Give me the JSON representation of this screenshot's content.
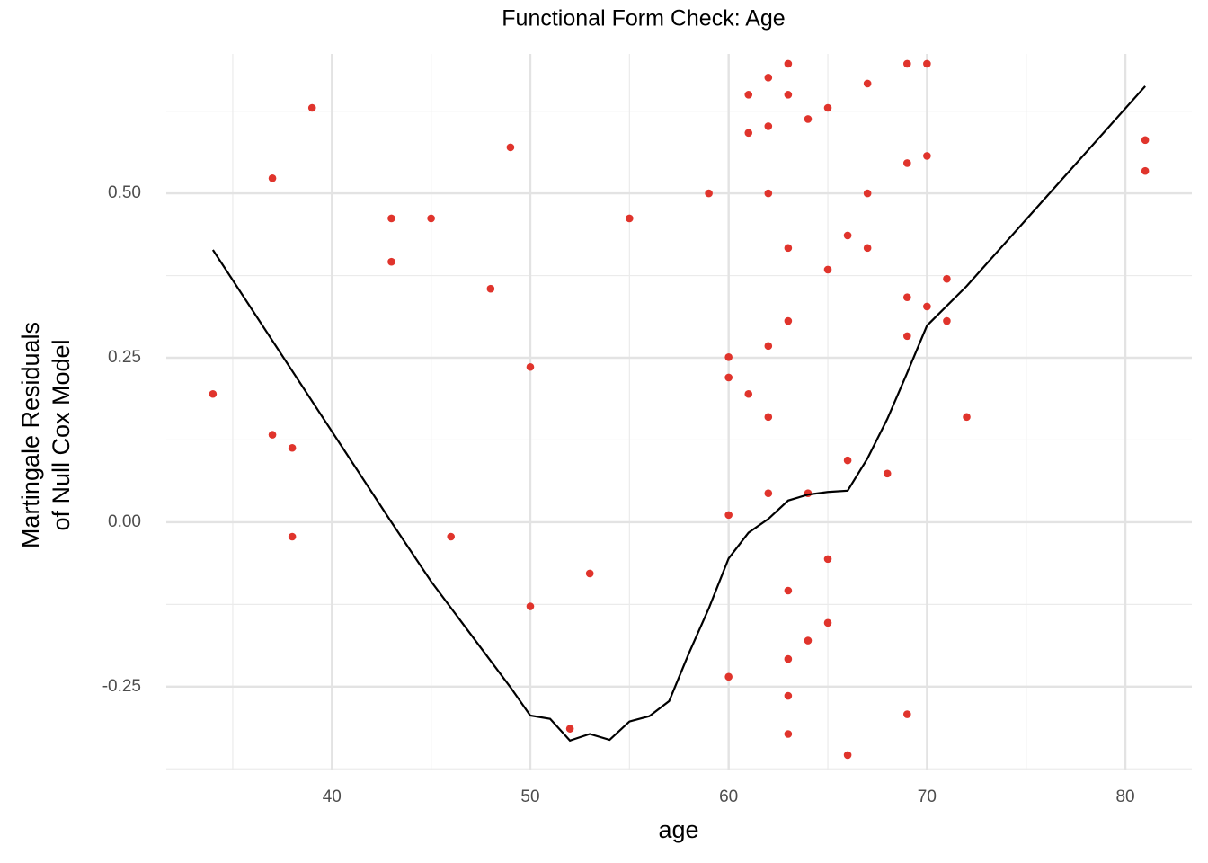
{
  "chart_data": {
    "type": "scatter",
    "title": "Functional Form Check: Age",
    "xlabel": "age",
    "ylabel": [
      "Martingale Residuals",
      "of Null Cox Model"
    ],
    "xlim": [
      31.65,
      83.35
    ],
    "ylim": [
      -0.376,
      0.712
    ],
    "xticks": [
      40,
      50,
      60,
      70,
      80
    ],
    "yticks": [
      {
        "value": -0.25,
        "label": "-0.25"
      },
      {
        "value": 0,
        "label": "0.00"
      },
      {
        "value": 0.25,
        "label": "0.25"
      },
      {
        "value": 0.5,
        "label": "0.50"
      }
    ],
    "xminor_ticks": [
      35,
      45,
      55,
      65,
      75
    ],
    "yminor_ticks": [
      -0.375,
      -0.125,
      0.125,
      0.375,
      0.625
    ],
    "grid": true,
    "point_color": "#e0342c",
    "x": [
      34,
      37,
      37,
      38,
      38,
      39,
      43,
      43,
      45,
      46,
      48,
      49,
      50,
      50,
      52,
      53,
      55,
      59,
      60,
      60,
      60,
      60,
      61,
      61,
      61,
      62,
      62,
      62,
      62,
      62,
      62,
      63,
      63,
      63,
      63,
      63,
      63,
      63,
      63,
      64,
      64,
      64,
      65,
      65,
      65,
      65,
      66,
      66,
      66,
      67,
      67,
      67,
      68,
      69,
      69,
      69,
      69,
      69,
      70,
      70,
      70,
      71,
      71,
      72,
      81,
      81
    ],
    "y": [
      0.195,
      0.523,
      0.133,
      0.113,
      -0.022,
      0.63,
      0.462,
      0.396,
      0.462,
      -0.022,
      0.355,
      0.57,
      0.236,
      -0.128,
      -0.314,
      -0.078,
      0.462,
      0.5,
      0.251,
      0.22,
      0.011,
      -0.235,
      0.65,
      0.592,
      0.195,
      0.676,
      0.602,
      0.5,
      0.268,
      0.16,
      0.044,
      0.697,
      0.65,
      0.417,
      0.306,
      -0.104,
      -0.208,
      -0.264,
      -0.322,
      0.613,
      0.044,
      -0.18,
      0.63,
      0.384,
      -0.056,
      -0.153,
      0.436,
      0.094,
      -0.354,
      0.667,
      0.5,
      0.417,
      0.074,
      0.697,
      0.546,
      0.342,
      0.283,
      -0.292,
      0.697,
      0.557,
      0.328,
      0.37,
      0.306,
      0.16,
      0.581,
      0.534
    ],
    "smooth": {
      "color": "#000000",
      "x": [
        34,
        43,
        45,
        49,
        50,
        51,
        52,
        53,
        54,
        55,
        56,
        57,
        58,
        59,
        60,
        61,
        62,
        63,
        64,
        65,
        66,
        67,
        68,
        69,
        70,
        71,
        72,
        81
      ],
      "y": [
        0.414,
        0.0,
        -0.09,
        -0.251,
        -0.294,
        -0.299,
        -0.332,
        -0.322,
        -0.331,
        -0.303,
        -0.295,
        -0.272,
        -0.199,
        -0.131,
        -0.055,
        -0.016,
        0.005,
        0.033,
        0.042,
        0.046,
        0.048,
        0.097,
        0.157,
        0.227,
        0.299,
        0.329,
        0.359,
        0.663
      ]
    }
  }
}
